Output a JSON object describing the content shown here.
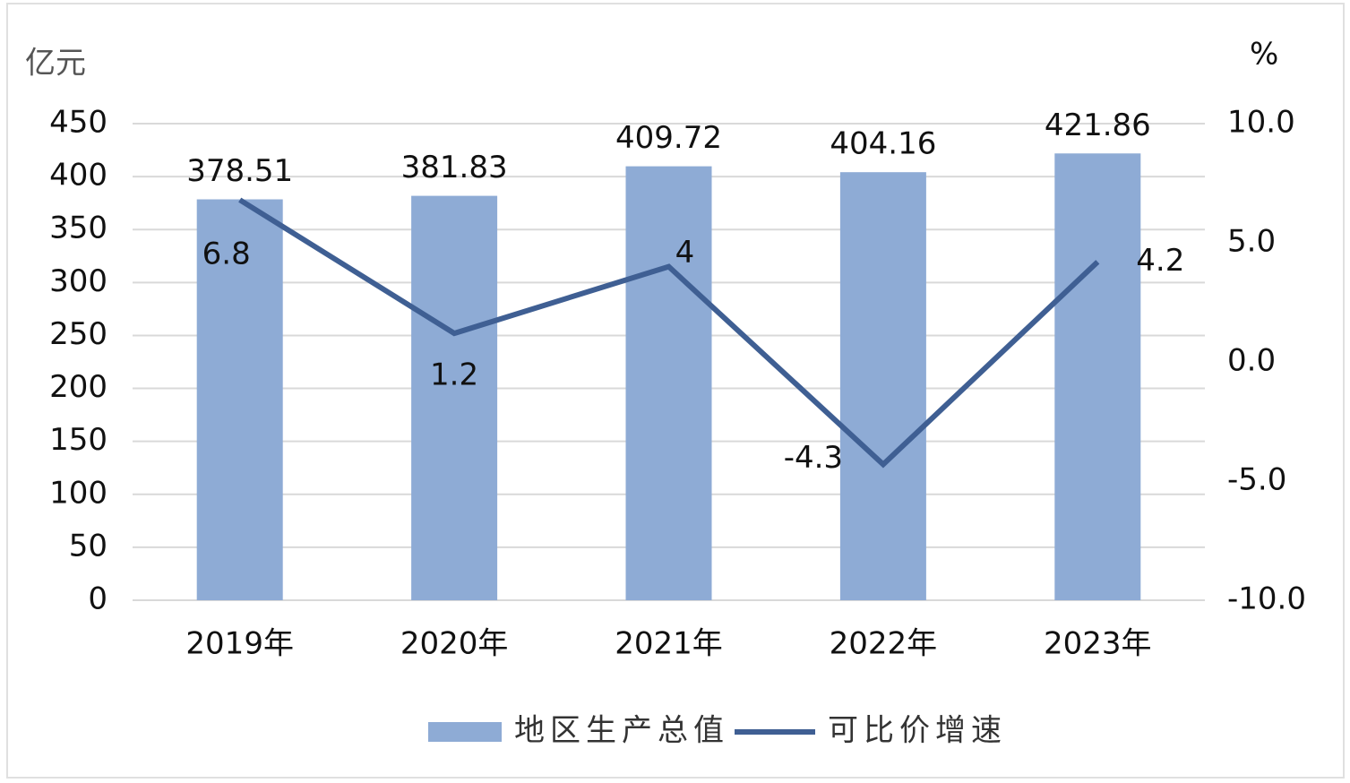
{
  "chart_data": {
    "type": "bar-line",
    "y_axis_label": "亿元",
    "y2_axis_label": "%",
    "categories": [
      "2019年",
      "2020年",
      "2021年",
      "2022年",
      "2023年"
    ],
    "series": [
      {
        "name": "地区生产总值",
        "type": "bar",
        "color": "#8eabd5",
        "values": [
          378.51,
          381.83,
          409.72,
          404.16,
          421.86
        ]
      },
      {
        "name": "可比价增速",
        "type": "line",
        "axis": "y2",
        "color": "#3f5f93",
        "values": [
          6.8,
          1.2,
          4,
          -4.3,
          4.2
        ]
      }
    ],
    "ylim": [
      0,
      450
    ],
    "yticks": [
      0,
      50,
      100,
      150,
      200,
      250,
      300,
      350,
      400,
      450
    ],
    "y2lim": [
      -10,
      10
    ],
    "y2ticks": [
      {
        "value": -10,
        "label": "-10.0"
      },
      {
        "value": -5,
        "label": "-5.0"
      },
      {
        "value": 0,
        "label": "0.0"
      },
      {
        "value": 5,
        "label": "5.0"
      },
      {
        "value": 10,
        "label": "10.0"
      }
    ],
    "grid": true,
    "legend": "bottom"
  }
}
